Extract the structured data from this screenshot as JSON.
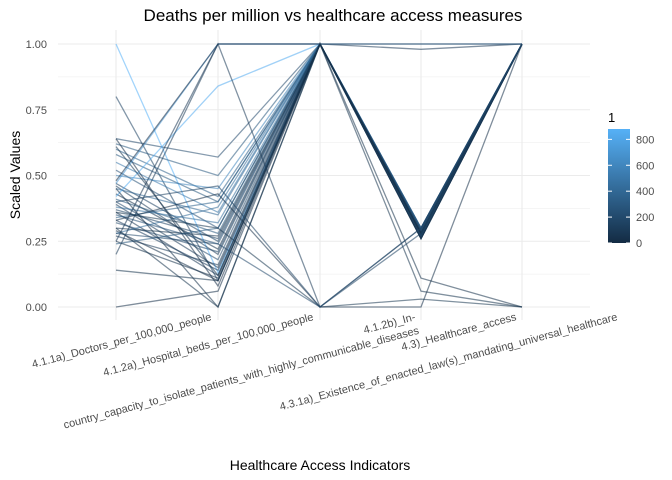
{
  "chart_data": {
    "type": "parallel_coordinates",
    "title": "Deaths per million vs healthcare access measures",
    "xlabel": "Healthcare Access Indicators",
    "ylabel": "Scaled Values",
    "ylim": [
      0,
      1
    ],
    "yticks": [
      {
        "value": 0.0,
        "label": "0.00"
      },
      {
        "value": 0.25,
        "label": "0.25"
      },
      {
        "value": 0.5,
        "label": "0.50"
      },
      {
        "value": 0.75,
        "label": "0.75"
      },
      {
        "value": 1.0,
        "label": "1.00"
      }
    ],
    "axes": [
      "4.1.1a)_Doctors_per_100,000_people",
      "4.1.2a)_Hospital_beds_per_100,000_people",
      "4.1.2b)_In-\ncountry_capacity_to_isolate_patients_with_highly_communicable_diseases",
      "4.3)_Healthcare_access",
      "4.3.1a)_Existence_of_enacted_law(s)_mandating_universal_healthcare"
    ],
    "grid": true,
    "legend": {
      "title": "1",
      "position": "right",
      "ticks": [
        0,
        200,
        400,
        600,
        800
      ],
      "range": [
        0,
        880
      ],
      "colors": [
        "#132B43",
        "#56B1F7"
      ]
    },
    "series": [
      {
        "values": [
          1.0,
          0.13,
          1,
          0.3,
          1
        ],
        "color_value": 900
      },
      {
        "values": [
          0.8,
          0.1,
          1,
          0.29,
          1
        ],
        "color_value": 150
      },
      {
        "values": [
          0.64,
          0.57,
          1,
          0.27,
          1
        ],
        "color_value": 200
      },
      {
        "values": [
          0.62,
          0.5,
          1,
          0.28,
          1
        ],
        "color_value": 300
      },
      {
        "values": [
          0.6,
          0.42,
          1,
          0.3,
          1
        ],
        "color_value": 350
      },
      {
        "values": [
          0.58,
          0.4,
          1,
          0.26,
          1
        ],
        "color_value": 300
      },
      {
        "values": [
          0.55,
          0.36,
          1,
          0.28,
          1
        ],
        "color_value": 500
      },
      {
        "values": [
          0.52,
          0.3,
          1,
          0.27,
          1
        ],
        "color_value": 250
      },
      {
        "values": [
          0.5,
          0.45,
          1,
          0.29,
          1
        ],
        "color_value": 600
      },
      {
        "values": [
          0.47,
          0.25,
          1,
          0.28,
          1
        ],
        "color_value": 150
      },
      {
        "values": [
          0.46,
          0.2,
          1,
          0.26,
          1
        ],
        "color_value": 100
      },
      {
        "values": [
          0.45,
          0.35,
          1,
          0.3,
          1
        ],
        "color_value": 400
      },
      {
        "values": [
          0.43,
          0.22,
          1,
          0.27,
          1
        ],
        "color_value": 50
      },
      {
        "values": [
          0.42,
          0.84,
          1,
          0.28,
          1
        ],
        "color_value": 850
      },
      {
        "values": [
          0.41,
          0.28,
          1,
          0.29,
          1
        ],
        "color_value": 300
      },
      {
        "values": [
          0.4,
          0.18,
          1,
          0.27,
          1
        ],
        "color_value": 200
      },
      {
        "values": [
          0.39,
          0.15,
          1,
          0.28,
          1
        ],
        "color_value": 100
      },
      {
        "values": [
          0.38,
          0.32,
          1,
          0.3,
          1
        ],
        "color_value": 450
      },
      {
        "values": [
          0.37,
          0.26,
          1,
          0.26,
          1
        ],
        "color_value": 150
      },
      {
        "values": [
          0.36,
          0.12,
          1,
          0.28,
          1
        ],
        "color_value": 80
      },
      {
        "values": [
          0.35,
          0.24,
          1,
          0.29,
          1
        ],
        "color_value": 250
      },
      {
        "values": [
          0.34,
          0.4,
          1,
          0.27,
          1
        ],
        "color_value": 350
      },
      {
        "values": [
          0.33,
          0.14,
          1,
          0.28,
          1
        ],
        "color_value": 120
      },
      {
        "values": [
          0.32,
          0.21,
          1,
          0.3,
          1
        ],
        "color_value": 200
      },
      {
        "values": [
          0.3,
          0.27,
          1,
          0.26,
          1
        ],
        "color_value": 60
      },
      {
        "values": [
          0.29,
          0.1,
          1,
          0.28,
          1
        ],
        "color_value": 30
      },
      {
        "values": [
          0.28,
          0.38,
          1,
          0.27,
          1
        ],
        "color_value": 420
      },
      {
        "values": [
          0.27,
          0.16,
          1,
          0.29,
          1
        ],
        "color_value": 90
      },
      {
        "values": [
          0.25,
          0.11,
          1,
          0.28,
          1
        ],
        "color_value": 40
      },
      {
        "values": [
          0.24,
          0.3,
          1,
          0.27,
          1
        ],
        "color_value": 300
      },
      {
        "values": [
          0.64,
          0.08,
          1,
          0.26,
          1
        ],
        "color_value": 20
      },
      {
        "values": [
          0.61,
          0.12,
          1,
          0.28,
          1
        ],
        "color_value": 70
      },
      {
        "values": [
          0.14,
          0.1,
          1,
          0.28,
          1
        ],
        "color_value": 60
      },
      {
        "values": [
          0.0,
          0.06,
          1,
          0.27,
          1
        ],
        "color_value": 30
      },
      {
        "values": [
          0.25,
          1.0,
          1,
          0.98,
          1
        ],
        "color_value": 80
      },
      {
        "values": [
          0.47,
          1.0,
          1,
          1.0,
          1
        ],
        "color_value": 700
      },
      {
        "values": [
          0.48,
          1.0,
          1,
          1.0,
          1
        ],
        "color_value": 20
      },
      {
        "values": [
          0.45,
          0.0,
          1,
          0.11,
          0
        ],
        "color_value": 40
      },
      {
        "values": [
          0.3,
          0.0,
          1,
          0.06,
          0
        ],
        "color_value": 60
      },
      {
        "values": [
          0.2,
          1.0,
          0,
          0.3,
          1
        ],
        "color_value": 100
      },
      {
        "values": [
          0.33,
          0.43,
          0,
          0.0,
          1
        ],
        "color_value": 30
      },
      {
        "values": [
          0.36,
          0.3,
          0,
          0.03,
          0
        ],
        "color_value": 70
      },
      {
        "values": [
          0.4,
          0.46,
          0,
          0.28,
          1
        ],
        "color_value": 150
      },
      {
        "values": [
          0.28,
          0.24,
          0,
          0.3,
          1
        ],
        "color_value": 200
      }
    ]
  }
}
